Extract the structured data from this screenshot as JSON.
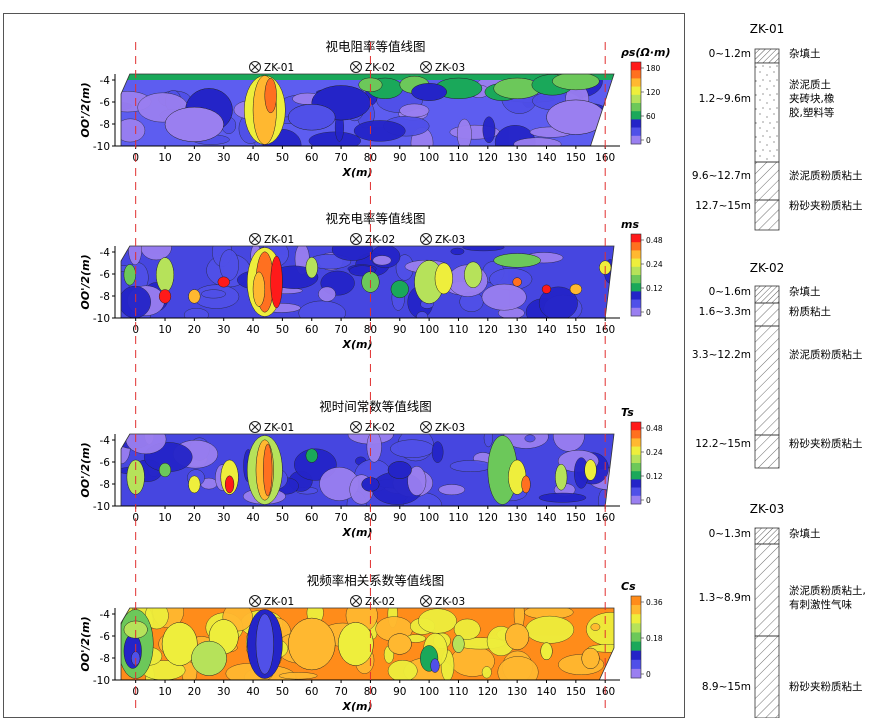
{
  "panels": [
    {
      "title": "视电阻率等值线图",
      "colorbar_label": "ρs(Ω·m)",
      "colorbar_ticks": [
        "180",
        "120",
        "60",
        "0"
      ],
      "colors": [
        "#9a7ff0",
        "#5050e8",
        "#2424c8",
        "#1aa85a",
        "#6cc85a",
        "#b6e25a",
        "#eeee3c",
        "#ffb830",
        "#ff7020",
        "#ff1a1a"
      ],
      "background": "#5d5df0"
    },
    {
      "title": "视充电率等值线图",
      "colorbar_label": "ms",
      "colorbar_ticks": [
        "0.48",
        "0.24",
        "0.12",
        "0"
      ],
      "colors": [
        "#9a7ff0",
        "#5050e8",
        "#2424c8",
        "#1aa85a",
        "#6cc85a",
        "#b6e25a",
        "#eeee3c",
        "#ffb830",
        "#ff7020",
        "#ff1a1a"
      ],
      "background": "#4646e0"
    },
    {
      "title": "视时间常数等值线图",
      "colorbar_label": "Ts",
      "colorbar_ticks": [
        "0.48",
        "0.24",
        "0.12",
        "0"
      ],
      "colors": [
        "#9a7ff0",
        "#5050e8",
        "#2424c8",
        "#1aa85a",
        "#6cc85a",
        "#b6e25a",
        "#eeee3c",
        "#ffb830",
        "#ff7020",
        "#ff1a1a"
      ],
      "background": "#4646e0"
    },
    {
      "title": "视频率相关系数等值线图",
      "colorbar_label": "Cs",
      "colorbar_ticks": [
        "0.36",
        "0.18",
        "0"
      ],
      "colors": [
        "#9a7ff0",
        "#5050e8",
        "#2424c8",
        "#1aa85a",
        "#6cc85a",
        "#b6e25a",
        "#eeee3c",
        "#ffb830",
        "#ff8c1a"
      ],
      "background": "#ff8c1a"
    }
  ],
  "boreholes_on_profile": [
    {
      "name": "ZK-01",
      "x": 45
    },
    {
      "name": "ZK-02",
      "x": 80
    },
    {
      "name": "ZK-03",
      "x": 100
    }
  ],
  "axes": {
    "x_label": "X(m)",
    "y_label": "OO'/2(m)",
    "x_ticks": [
      "0",
      "10",
      "20",
      "30",
      "40",
      "50",
      "60",
      "70",
      "80",
      "90",
      "100",
      "110",
      "120",
      "130",
      "140",
      "150",
      "160"
    ],
    "y_ticks": [
      "-4",
      "-6",
      "-8",
      "-10"
    ]
  },
  "boreholes": [
    {
      "name": "ZK-01",
      "layers": [
        {
          "depth": "0~1.2m",
          "desc": [
            "杂填土"
          ],
          "pattern": "dense"
        },
        {
          "depth": "1.2~9.6m",
          "desc": [
            "淤泥质土",
            "夹砖块,橡",
            "胶,塑料等"
          ],
          "pattern": "dots"
        },
        {
          "depth": "9.6~12.7m",
          "desc": [
            "淤泥质粉质粘土"
          ],
          "pattern": "hatch"
        },
        {
          "depth": "12.7~15m",
          "desc": [
            "粉砂夹粉质粘土"
          ],
          "pattern": "hatch"
        }
      ]
    },
    {
      "name": "ZK-02",
      "layers": [
        {
          "depth": "0~1.6m",
          "desc": [
            "杂填土"
          ],
          "pattern": "dense"
        },
        {
          "depth": "1.6~3.3m",
          "desc": [
            "粉质粘土"
          ],
          "pattern": "hatch"
        },
        {
          "depth": "3.3~12.2m",
          "desc": [
            "淤泥质粉质粘土"
          ],
          "pattern": "hatch"
        },
        {
          "depth": "12.2~15m",
          "desc": [
            "粉砂夹粉质粘土"
          ],
          "pattern": "hatch"
        }
      ]
    },
    {
      "name": "ZK-03",
      "layers": [
        {
          "depth": "0~1.3m",
          "desc": [
            "杂填土"
          ],
          "pattern": "dense"
        },
        {
          "depth": "1.3~8.9m",
          "desc": [
            "淤泥质粉质粘土,",
            "有刺激性气味"
          ],
          "pattern": "hatch"
        },
        {
          "depth": "8.9~15m",
          "desc": [
            "粉砂夹粉质粘土"
          ],
          "pattern": "hatch"
        }
      ]
    }
  ]
}
